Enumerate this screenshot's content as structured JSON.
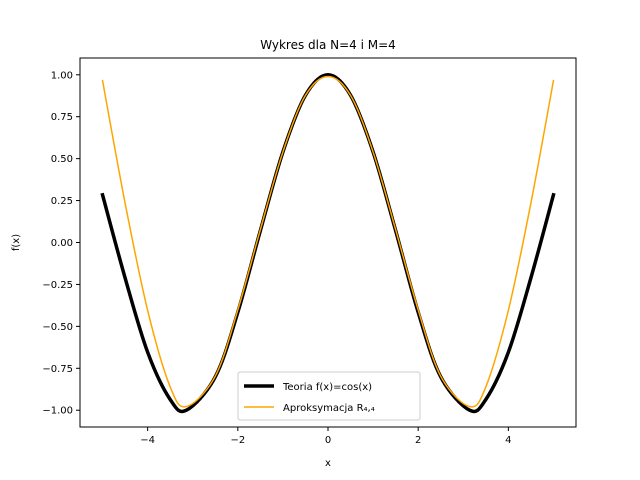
{
  "chart_data": {
    "type": "line",
    "title": "Wykres dla N=4 i M=4",
    "xlabel": "x",
    "ylabel": "f(x)",
    "xlim": [
      -5.5,
      5.5
    ],
    "ylim": [
      -1.1,
      1.1
    ],
    "xticks": [
      -4,
      -2,
      0,
      2,
      4
    ],
    "xtick_labels": [
      "−4",
      "−2",
      "0",
      "2",
      "4"
    ],
    "yticks": [
      -1.0,
      -0.75,
      -0.5,
      -0.25,
      0.0,
      0.25,
      0.5,
      0.75,
      1.0
    ],
    "ytick_labels": [
      "−1.00",
      "−0.75",
      "−0.50",
      "−0.25",
      "0.00",
      "0.25",
      "0.50",
      "0.75",
      "1.00"
    ],
    "grid": false,
    "legend_placement": "lower-center",
    "x": [
      -5.0,
      -4.5,
      -4.0,
      -3.5,
      -3.14,
      -2.5,
      -2.0,
      -1.5,
      -1.0,
      -0.5,
      0.0,
      0.5,
      1.0,
      1.5,
      2.0,
      2.5,
      3.14,
      3.5,
      4.0,
      4.5,
      5.0
    ],
    "series": [
      {
        "name": "Teoria f(x)=cos(x)",
        "color": "#000000",
        "values": [
          0.284,
          -0.211,
          -0.654,
          -0.936,
          -1.0,
          -0.801,
          -0.416,
          0.071,
          0.54,
          0.878,
          1.0,
          0.878,
          0.54,
          0.071,
          -0.416,
          -0.801,
          -1.0,
          -0.936,
          -0.654,
          -0.211,
          0.284
        ]
      },
      {
        "name": "Aproksymacja R₄,₄",
        "color": "#ffa500",
        "values": [
          0.965,
          0.235,
          -0.404,
          -0.861,
          -0.978,
          -0.797,
          -0.402,
          0.077,
          0.54,
          0.877,
          0.99,
          0.877,
          0.54,
          0.077,
          -0.402,
          -0.797,
          -0.978,
          -0.861,
          -0.404,
          0.235,
          0.965
        ]
      }
    ]
  }
}
